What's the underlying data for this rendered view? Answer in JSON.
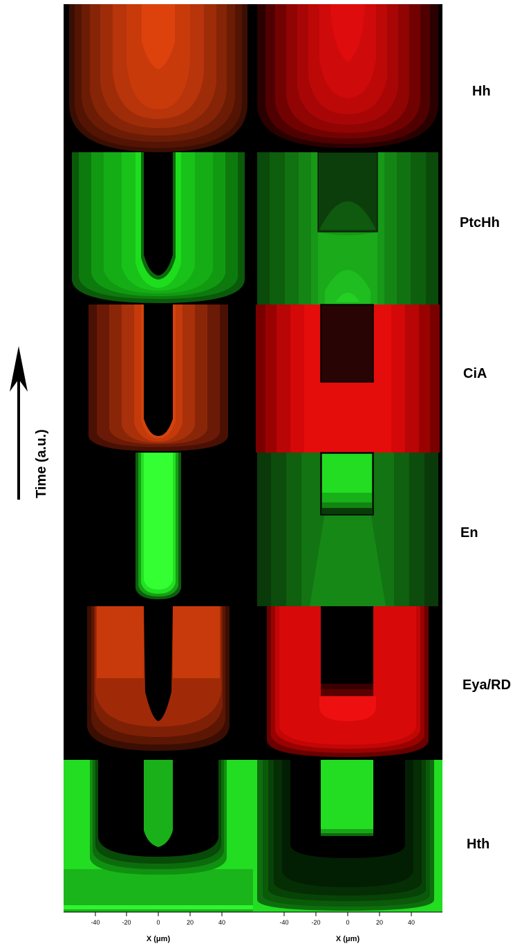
{
  "time_axis": {
    "label": "Time (a.u.)"
  },
  "rows": [
    {
      "label": "Hh",
      "color": "#e04a10"
    },
    {
      "label": "PtcHh",
      "color": "#30e030"
    },
    {
      "label": "CiA",
      "color": "#e81a1a"
    },
    {
      "label": "En",
      "color": "#33ff33"
    },
    {
      "label": "Eya/RD",
      "color": "#e81010"
    },
    {
      "label": "Hth",
      "color": "#22dd22"
    }
  ],
  "x_axis": {
    "label": "X (μm)",
    "ticks": [
      "-40",
      "-20",
      "0",
      "20",
      "40"
    ]
  },
  "colors": {
    "background": "#000000",
    "red": "#e52d0a",
    "green": "#2fe62f"
  }
}
